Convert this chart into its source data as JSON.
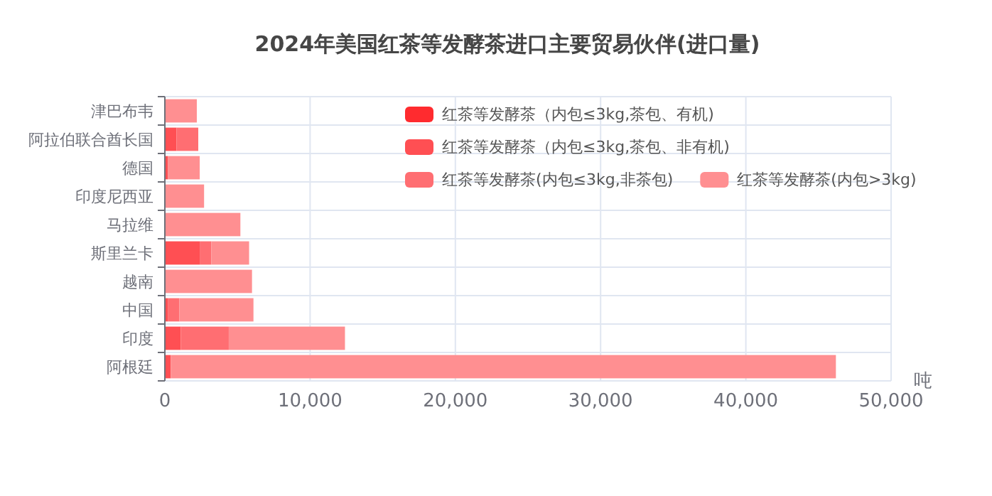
{
  "chart_data": {
    "type": "bar",
    "title": "2024年美国红茶等发酵茶进口主要贸易伙伴(进口量)",
    "xlabel": "吨",
    "orientation": "horizontal",
    "stacked": true,
    "grid": true,
    "legend": "top right",
    "categories": [
      "津巴布韦",
      "阿拉伯联合酋长国",
      "德国",
      "印度尼西亚",
      "马拉维",
      "斯里兰卡",
      "越南",
      "中国",
      "印度",
      "阿根廷"
    ],
    "series": [
      {
        "name": "红茶等发酵茶（内包≤3kg,茶包、有机)",
        "color": "#ff2b2f",
        "values": [
          0,
          0,
          0,
          0,
          0,
          0,
          0,
          0,
          0,
          0
        ]
      },
      {
        "name": "红茶等发酵茶（内包≤3kg,茶包、非有机)",
        "color": "#ff4f53",
        "values": [
          0,
          800,
          200,
          0,
          0,
          2400,
          0,
          200,
          1100,
          400
        ]
      },
      {
        "name": "红茶等发酵茶(内包≤3kg,非茶包)",
        "color": "#ff6e72",
        "values": [
          0,
          1500,
          0,
          0,
          0,
          800,
          0,
          800,
          3300,
          0
        ]
      },
      {
        "name": "红茶等发酵茶(内包>3kg)",
        "color": "#ff8f91",
        "values": [
          2200,
          0,
          2200,
          2700,
          5200,
          2600,
          6000,
          5100,
          8000,
          45800
        ]
      }
    ],
    "xlim": [
      0,
      50000
    ],
    "xticks": [
      {
        "value": 0,
        "label": "0"
      },
      {
        "value": 10000,
        "label": "10,000"
      },
      {
        "value": 20000,
        "label": "20,000"
      },
      {
        "value": 30000,
        "label": "30,000"
      },
      {
        "value": 40000,
        "label": "40,000"
      },
      {
        "value": 50000,
        "label": "50,000"
      }
    ]
  }
}
